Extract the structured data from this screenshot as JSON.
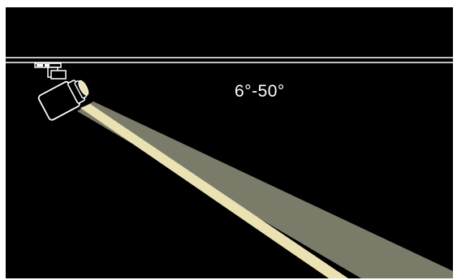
{
  "beam_angle_label": "6°-50°",
  "colors": {
    "background": "#000000",
    "frame": "#ffffff",
    "outer_beam": "#7b7b69",
    "inner_beam": "#ebe2b4",
    "outline": "#ffffff"
  },
  "icons": {
    "fixture": "track-spotlight-icon",
    "track": "track-rail-icon"
  }
}
